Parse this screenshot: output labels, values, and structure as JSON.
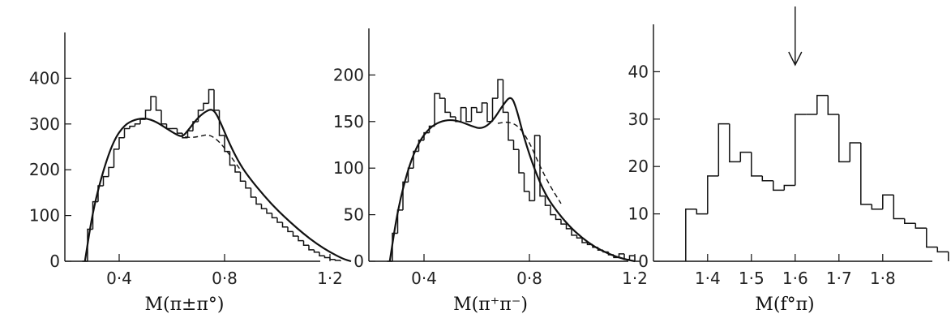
{
  "chart_data": [
    {
      "type": "histogram",
      "xlabel": "M(π±π°)",
      "xticks": [
        0.4,
        0.8,
        1.2
      ],
      "xtick_labels": [
        "0·4",
        "0·8",
        "1·2"
      ],
      "yticks": [
        0,
        100,
        200,
        300,
        400
      ],
      "ytick_labels": [
        "0",
        "100",
        "200",
        "300",
        "400"
      ],
      "xlim": [
        0.2,
        1.32
      ],
      "ylim": [
        0,
        500
      ],
      "bin_width": 0.02,
      "bin_start": 0.26,
      "histogram": [
        0,
        70,
        130,
        165,
        185,
        205,
        245,
        270,
        290,
        295,
        300,
        310,
        330,
        360,
        330,
        300,
        290,
        290,
        280,
        270,
        285,
        305,
        330,
        345,
        375,
        330,
        275,
        240,
        210,
        195,
        175,
        160,
        140,
        125,
        115,
        105,
        95,
        85,
        75,
        65,
        55,
        45,
        35,
        25,
        20,
        12,
        8,
        4,
        2
      ],
      "fit": {
        "x": [
          0.27,
          0.3,
          0.34,
          0.38,
          0.42,
          0.46,
          0.5,
          0.54,
          0.58,
          0.62,
          0.64,
          0.66,
          0.7,
          0.74,
          0.76,
          0.78,
          0.82,
          0.86,
          0.9,
          0.95,
          1.0,
          1.05,
          1.1,
          1.15,
          1.2,
          1.25,
          1.28
        ],
        "y": [
          0,
          110,
          200,
          265,
          298,
          310,
          313,
          305,
          290,
          276,
          272,
          285,
          315,
          332,
          330,
          310,
          255,
          210,
          178,
          143,
          112,
          85,
          60,
          38,
          20,
          5,
          0
        ]
      },
      "background": {
        "x": [
          0.62,
          0.66,
          0.7,
          0.74,
          0.78,
          0.82,
          0.86
        ],
        "y": [
          276,
          270,
          272,
          278,
          262,
          232,
          200
        ]
      }
    },
    {
      "type": "histogram",
      "xlabel": "M(π⁺π⁻)",
      "xticks": [
        0.4,
        0.8,
        1.2
      ],
      "xtick_labels": [
        "0·4",
        "0·8",
        "1·2"
      ],
      "yticks": [
        0,
        50,
        100,
        150,
        200
      ],
      "ytick_labels": [
        "0",
        "50",
        "100",
        "150",
        "200"
      ],
      "xlim": [
        0.2,
        1.32
      ],
      "ylim": [
        0,
        250
      ],
      "bin_width": 0.02,
      "bin_start": 0.26,
      "histogram": [
        0,
        30,
        55,
        85,
        100,
        118,
        130,
        138,
        145,
        180,
        175,
        160,
        155,
        150,
        165,
        150,
        165,
        160,
        170,
        150,
        175,
        195,
        160,
        130,
        120,
        95,
        75,
        65,
        135,
        70,
        60,
        50,
        45,
        40,
        35,
        28,
        25,
        20,
        18,
        15,
        12,
        10,
        7,
        4,
        8,
        2,
        6,
        0
      ],
      "fit": {
        "x": [
          0.27,
          0.3,
          0.34,
          0.38,
          0.42,
          0.46,
          0.5,
          0.54,
          0.58,
          0.62,
          0.66,
          0.7,
          0.73,
          0.75,
          0.78,
          0.82,
          0.86,
          0.9,
          0.95,
          1.0,
          1.05,
          1.1,
          1.15,
          1.2
        ],
        "y": [
          0,
          55,
          100,
          128,
          143,
          150,
          152,
          150,
          145,
          142,
          150,
          168,
          178,
          165,
          132,
          98,
          72,
          55,
          38,
          25,
          15,
          8,
          3,
          0
        ]
      },
      "background": {
        "x": [
          0.68,
          0.72,
          0.76,
          0.8,
          0.84,
          0.88,
          0.92
        ],
        "y": [
          148,
          150,
          145,
          128,
          102,
          80,
          62
        ]
      }
    },
    {
      "type": "histogram",
      "xlabel": "M(f°π)",
      "xticks": [
        1.4,
        1.5,
        1.6,
        1.7,
        1.8
      ],
      "xtick_labels": [
        "1·4",
        "1·5",
        "1·6",
        "1·7",
        "1·8"
      ],
      "yticks": [
        0,
        10,
        20,
        30,
        40
      ],
      "ytick_labels": [
        "0",
        "10",
        "20",
        "30",
        "40"
      ],
      "xlim": [
        1.28,
        1.9
      ],
      "ylim": [
        0,
        50
      ],
      "bin_width": 0.025,
      "bin_start": 1.35,
      "histogram": [
        11,
        10,
        18,
        29,
        21,
        23,
        18,
        17,
        15,
        16,
        31,
        31,
        35,
        31,
        21,
        25,
        12,
        11,
        14,
        9,
        8,
        7,
        3,
        2
      ],
      "arrow_x": 1.6
    }
  ]
}
